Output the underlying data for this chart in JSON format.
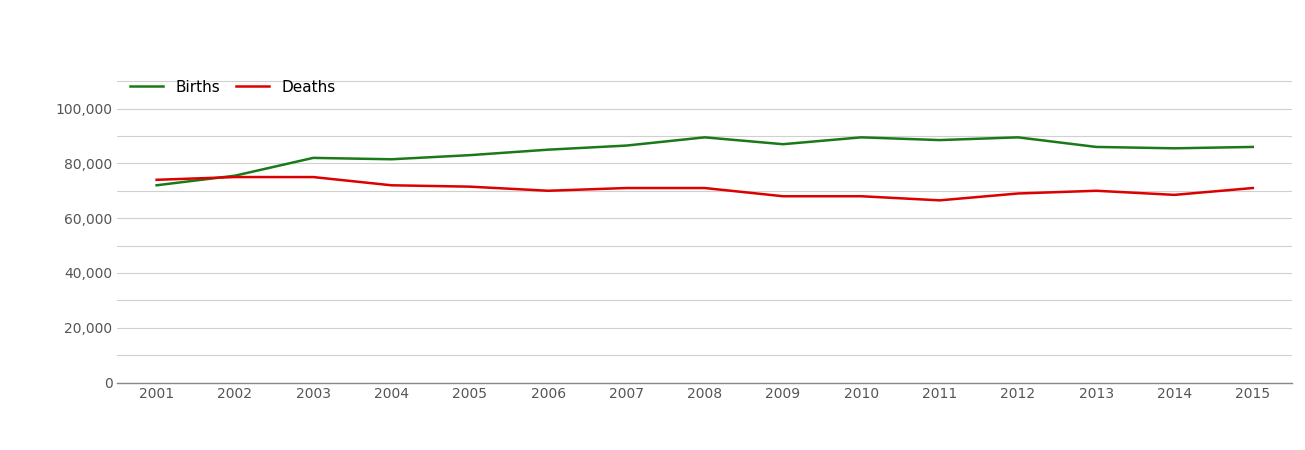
{
  "years": [
    2001,
    2002,
    2003,
    2004,
    2005,
    2006,
    2007,
    2008,
    2009,
    2010,
    2011,
    2012,
    2013,
    2014,
    2015
  ],
  "births": [
    72000,
    75500,
    82000,
    81500,
    83000,
    85000,
    86500,
    89500,
    87000,
    89500,
    88500,
    89500,
    86000,
    85500,
    86000
  ],
  "deaths": [
    74000,
    75000,
    75000,
    72000,
    71500,
    70000,
    71000,
    71000,
    68000,
    68000,
    66500,
    69000,
    70000,
    68500,
    71000
  ],
  "births_color": "#1a7a1a",
  "deaths_color": "#dd0000",
  "line_width": 1.8,
  "ylim": [
    0,
    115000
  ],
  "yticks": [
    0,
    20000,
    40000,
    60000,
    80000,
    100000
  ],
  "ytick_labels": [
    "0",
    "20,000",
    "40,000",
    "60,000",
    "80,000",
    "100,000"
  ],
  "minor_yticks": [
    10000,
    30000,
    50000,
    70000,
    90000,
    110000
  ],
  "background_color": "#ffffff",
  "grid_color": "#d0d0d0",
  "legend_labels": [
    "Births",
    "Deaths"
  ]
}
